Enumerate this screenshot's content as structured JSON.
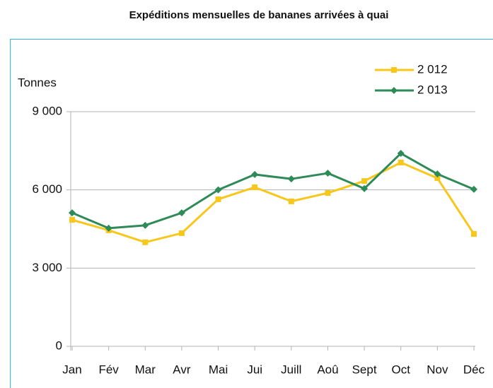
{
  "chart_data": {
    "type": "line",
    "title": "Expéditions mensuelles de bananes arrivées à quai",
    "y_label": "Tonnes",
    "categories": [
      "Jan",
      "Fév",
      "Mar",
      "Avr",
      "Mai",
      "Jui",
      "Juill",
      "Aoû",
      "Sept",
      "Oct",
      "Nov",
      "Déc"
    ],
    "series": [
      {
        "name": "2 012",
        "color": "#f7c71c",
        "marker": "square",
        "values": [
          4850,
          4450,
          3990,
          4340,
          5640,
          6100,
          5560,
          5880,
          6340,
          7050,
          6450,
          4310
        ]
      },
      {
        "name": "2 013",
        "color": "#2e8b57",
        "marker": "diamond",
        "values": [
          5120,
          4530,
          4640,
          5120,
          6000,
          6590,
          6420,
          6640,
          6050,
          7400,
          6610,
          6020
        ]
      }
    ],
    "ylim": [
      0,
      9000
    ],
    "yticks": [
      0,
      {
        "value": 3000,
        "label": "3 000"
      },
      {
        "value": 6000,
        "label": "6 000"
      },
      {
        "value": 9000,
        "label": "9 000"
      }
    ],
    "grid": true,
    "legend": "upper right"
  }
}
